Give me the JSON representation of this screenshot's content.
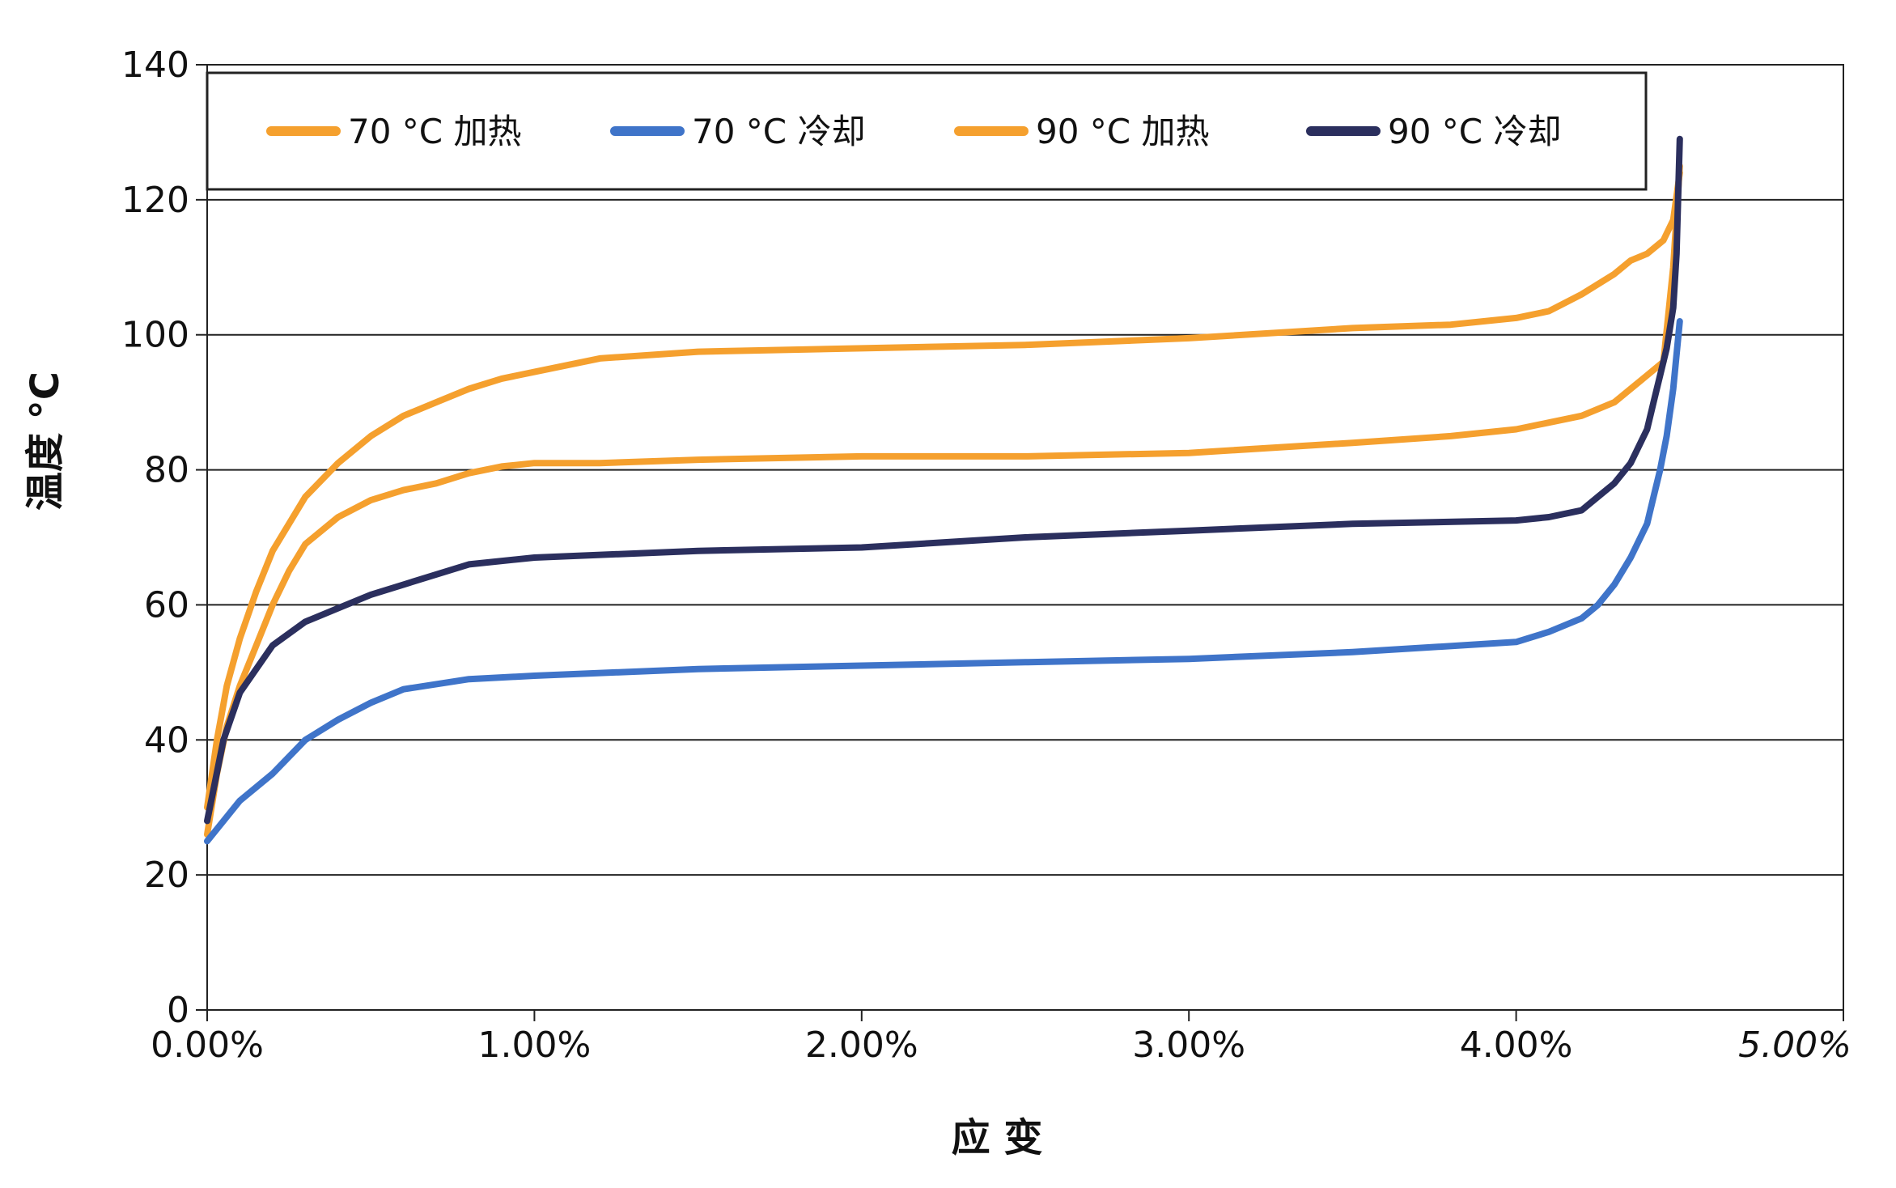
{
  "chart_data": {
    "type": "line",
    "xlabel": "应 变",
    "ylabel": "温度 °C",
    "xlim": [
      0,
      5
    ],
    "ylim": [
      0,
      140
    ],
    "x_ticks": [
      "0.00%",
      "1.00%",
      "2.00%",
      "3.00%",
      "4.00%",
      "5.00%"
    ],
    "y_ticks": [
      "0",
      "20",
      "40",
      "60",
      "80",
      "100",
      "120",
      "140"
    ],
    "x_tick_values": [
      0,
      1,
      2,
      3,
      4,
      5
    ],
    "y_tick_values": [
      0,
      20,
      40,
      60,
      80,
      100,
      120,
      140
    ],
    "grid": "horizontal",
    "legend_position": "top",
    "series": [
      {
        "name": "70 °C 加热",
        "color": "#f5a02e",
        "x": [
          0.0,
          0.03,
          0.06,
          0.1,
          0.15,
          0.2,
          0.25,
          0.3,
          0.4,
          0.5,
          0.6,
          0.7,
          0.8,
          0.9,
          1.0,
          1.2,
          1.5,
          2.0,
          2.5,
          3.0,
          3.5,
          3.8,
          4.0,
          4.1,
          4.2,
          4.3,
          4.35,
          4.4,
          4.45,
          4.48,
          4.5
        ],
        "y": [
          26,
          35,
          42,
          48,
          54,
          60,
          65,
          69,
          73,
          75.5,
          77,
          78,
          79.5,
          80.5,
          81,
          81,
          81.5,
          82,
          82,
          82.5,
          84,
          85,
          86,
          87,
          88,
          90,
          92,
          94,
          96,
          110,
          125
        ]
      },
      {
        "name": "70 °C 冷却",
        "color": "#3f74c9",
        "x": [
          4.5,
          4.48,
          4.46,
          4.44,
          4.42,
          4.4,
          4.35,
          4.3,
          4.25,
          4.2,
          4.1,
          4.0,
          3.5,
          3.0,
          2.5,
          2.0,
          1.5,
          1.0,
          0.8,
          0.6,
          0.5,
          0.4,
          0.3,
          0.2,
          0.1,
          0.05,
          0.0
        ],
        "y": [
          102,
          92,
          85,
          80,
          76,
          72,
          67,
          63,
          60,
          58,
          56,
          54.5,
          53,
          52,
          51.5,
          51,
          50.5,
          49.5,
          49,
          47.5,
          45.5,
          43,
          40,
          35,
          31,
          28,
          25
        ]
      },
      {
        "name": "90 °C 加热",
        "color": "#f5a02e",
        "x": [
          0.0,
          0.03,
          0.06,
          0.1,
          0.15,
          0.2,
          0.25,
          0.3,
          0.4,
          0.5,
          0.6,
          0.7,
          0.8,
          0.9,
          1.0,
          1.2,
          1.5,
          2.0,
          2.5,
          3.0,
          3.5,
          3.8,
          4.0,
          4.1,
          4.2,
          4.3,
          4.35,
          4.4,
          4.45,
          4.48,
          4.5
        ],
        "y": [
          30,
          40,
          48,
          55,
          62,
          68,
          72,
          76,
          81,
          85,
          88,
          90,
          92,
          93.5,
          94.5,
          96.5,
          97.5,
          98,
          98.5,
          99.5,
          101,
          101.5,
          102.5,
          103.5,
          106,
          109,
          111,
          112,
          114,
          117,
          124
        ]
      },
      {
        "name": "90 °C 冷却",
        "color": "#2b2f5e",
        "x": [
          4.5,
          4.49,
          4.48,
          4.46,
          4.44,
          4.42,
          4.4,
          4.35,
          4.3,
          4.25,
          4.2,
          4.1,
          4.0,
          3.5,
          3.0,
          2.5,
          2.0,
          1.5,
          1.0,
          0.8,
          0.6,
          0.5,
          0.4,
          0.3,
          0.2,
          0.1,
          0.05,
          0.0
        ],
        "y": [
          129,
          112,
          104,
          98,
          94,
          90,
          86,
          81,
          78,
          76,
          74,
          73,
          72.5,
          72,
          71,
          70,
          68.5,
          68,
          67,
          66,
          63,
          61.5,
          59.5,
          57.5,
          54,
          47,
          40,
          28
        ]
      }
    ]
  }
}
